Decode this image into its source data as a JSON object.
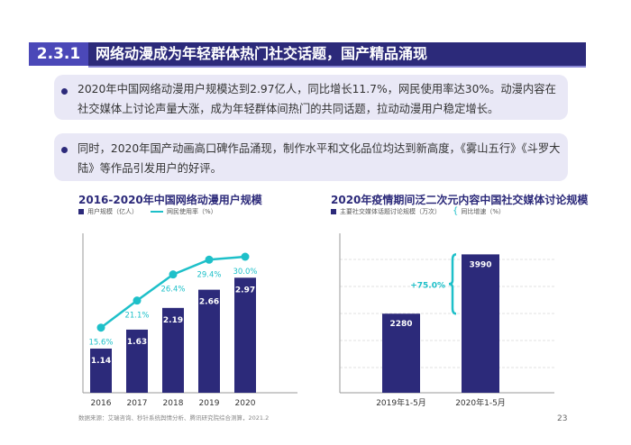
{
  "header": {
    "section_number": "2.3.1",
    "title": "网络动漫成为年轻群体热门社交话题，国产精品涌现"
  },
  "bullets": [
    "2020年中国网络动漫用户规模达到2.97亿人，同比增长11.7%，网民使用率达30%。动漫内容在社交媒体上讨论声量大涨，成为年轻群体间热门的共同话题，拉动动漫用户稳定增长。",
    "同时，2020年国产动画高口碑作品涌现，制作水平和文化品位均达到新高度，《雾山五行》《斗罗大陆》等作品引发用户的好评。"
  ],
  "chart_left": {
    "title": "2016-2020年中国网络动漫用户规模",
    "legend_bar": "用户规模（亿人）",
    "legend_line": "网民使用率（%）"
  },
  "chart_right": {
    "title": "2020年疫情期间泛二次元内容中国社交媒体讨论规模",
    "legend_bar": "主要社交媒体话题讨论规模（万次）",
    "legend_bracket": "同比增速（%）"
  },
  "colors": {
    "bar": "#2c2a7a",
    "line": "#1ec0c9",
    "header_dark": "#2c2a7a",
    "header_accent": "#4b48b8",
    "bullet_bg": "#e9e8f6"
  },
  "chart_data": [
    {
      "type": "bar",
      "title": "2016-2020年中国网络动漫用户规模",
      "categories": [
        "2016",
        "2017",
        "2018",
        "2019",
        "2020"
      ],
      "series": [
        {
          "name": "用户规模（亿人）",
          "type": "bar",
          "values": [
            1.14,
            1.63,
            2.19,
            2.66,
            2.97
          ],
          "labels": [
            "1.14",
            "1.63",
            "2.19",
            "2.66",
            "2.97"
          ]
        },
        {
          "name": "网民使用率（%）",
          "type": "line",
          "values": [
            15.6,
            21.1,
            26.4,
            29.4,
            30.0
          ],
          "labels": [
            "15.6%",
            "21.1%",
            "26.4%",
            "29.4%",
            "30.0%"
          ]
        }
      ],
      "legend": "top-left",
      "grid": false
    },
    {
      "type": "bar",
      "title": "2020年疫情期间泛二次元内容中国社交媒体讨论规模",
      "categories": [
        "2019年1-5月",
        "2020年1-5月"
      ],
      "series": [
        {
          "name": "主要社交媒体话题讨论规模（万次）",
          "values": [
            2280,
            3990
          ],
          "labels": [
            "2280",
            "3990"
          ]
        }
      ],
      "annotations": [
        {
          "text": "+75.0%",
          "label": "同比增速（%）"
        }
      ],
      "legend": "top-left",
      "grid": true
    }
  ],
  "footnote": "数据来源：艾瑞咨询、秒针系统舆情分析、腾讯研究院综合测算，2021.2",
  "page_number": "23"
}
